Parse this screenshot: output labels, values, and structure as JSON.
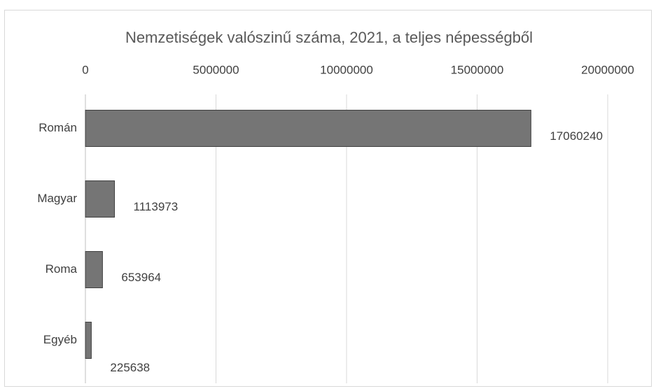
{
  "chart_data": {
    "type": "bar",
    "orientation": "horizontal",
    "title": "Nemzetiségek valószinű száma, 2021, a teljes népességből",
    "categories": [
      "Román",
      "Magyar",
      "Roma",
      "Egyéb"
    ],
    "values": [
      17060240,
      1113973,
      653964,
      225638
    ],
    "color": "#757575",
    "xlim": [
      0,
      20000000
    ],
    "xticks": [
      0,
      5000000,
      10000000,
      15000000,
      20000000
    ],
    "grid": true
  }
}
